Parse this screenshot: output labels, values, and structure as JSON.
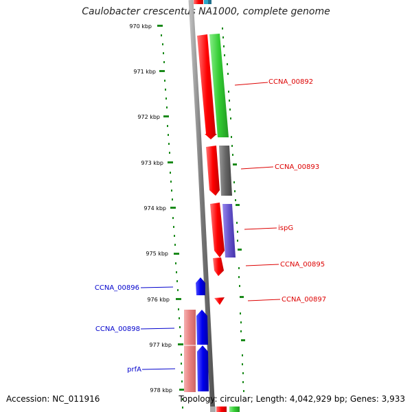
{
  "title": "Caulobacter crescentus NA1000, complete genome",
  "accession": "Accession: NC_011916",
  "stats": "Topology: circular; Length: 4,042,929 bp; Genes: 3,933",
  "ticks": [
    "970 kbp",
    "971 kbp",
    "972 kbp",
    "973 kbp",
    "974 kbp",
    "975 kbp",
    "976 kbp",
    "977 kbp",
    "978 kbp"
  ],
  "genes_forward": [
    {
      "name": "CCNA_00892",
      "color": "#dd0000"
    },
    {
      "name": "CCNA_00893",
      "color": "#dd0000"
    },
    {
      "name": "ispG",
      "color": "#dd0000"
    },
    {
      "name": "CCNA_00895",
      "color": "#dd0000"
    },
    {
      "name": "CCNA_00897",
      "color": "#dd0000"
    }
  ],
  "genes_reverse": [
    {
      "name": "CCNA_00896",
      "color": "#0000cc"
    },
    {
      "name": "CCNA_00898",
      "color": "#0000cc"
    },
    {
      "name": "prfA",
      "color": "#0000cc"
    }
  ],
  "colors": {
    "forward_gene": "#ff0000",
    "reverse_gene": "#0000ee",
    "cog_green": "#33cc33",
    "cog_gray": "#666666",
    "cog_purple": "#6655cc",
    "cog_pink": "#e87f7f",
    "backbone": "#777777",
    "tick": "#1a8a1a"
  }
}
